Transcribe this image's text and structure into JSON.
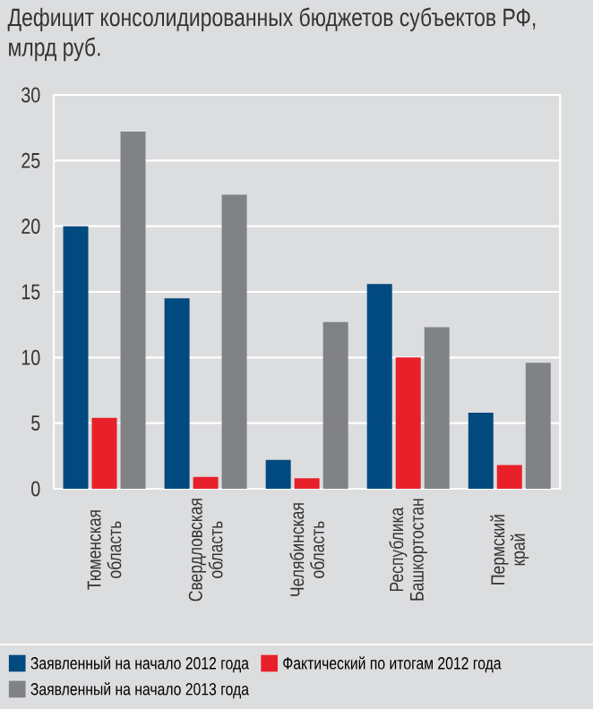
{
  "chart_data": {
    "type": "bar",
    "title": "Дефицит консолидированных бюджетов субъектов РФ, млрд руб.",
    "categories": [
      "Тюменская область",
      "Свердловская область",
      "Челябинская область",
      "Республика Башкортостан",
      "Пермский край"
    ],
    "series": [
      {
        "name": "Заявленный на начало 2012 года",
        "color": "#004a80",
        "values": [
          20,
          14.5,
          2.2,
          15.6,
          5.8
        ]
      },
      {
        "name": "Фактический по итогам 2012 года",
        "color": "#e8202a",
        "values": [
          5.4,
          0.9,
          0.8,
          10,
          1.8
        ]
      },
      {
        "name": "Заявленный на начало 2013 года",
        "color": "#808285",
        "values": [
          27.2,
          22.4,
          12.7,
          12.3,
          9.6
        ]
      }
    ],
    "ylim": [
      0,
      30
    ],
    "yticks": [
      0,
      5,
      10,
      15,
      20,
      25,
      30
    ],
    "grid": "y",
    "legend": "bottom"
  }
}
